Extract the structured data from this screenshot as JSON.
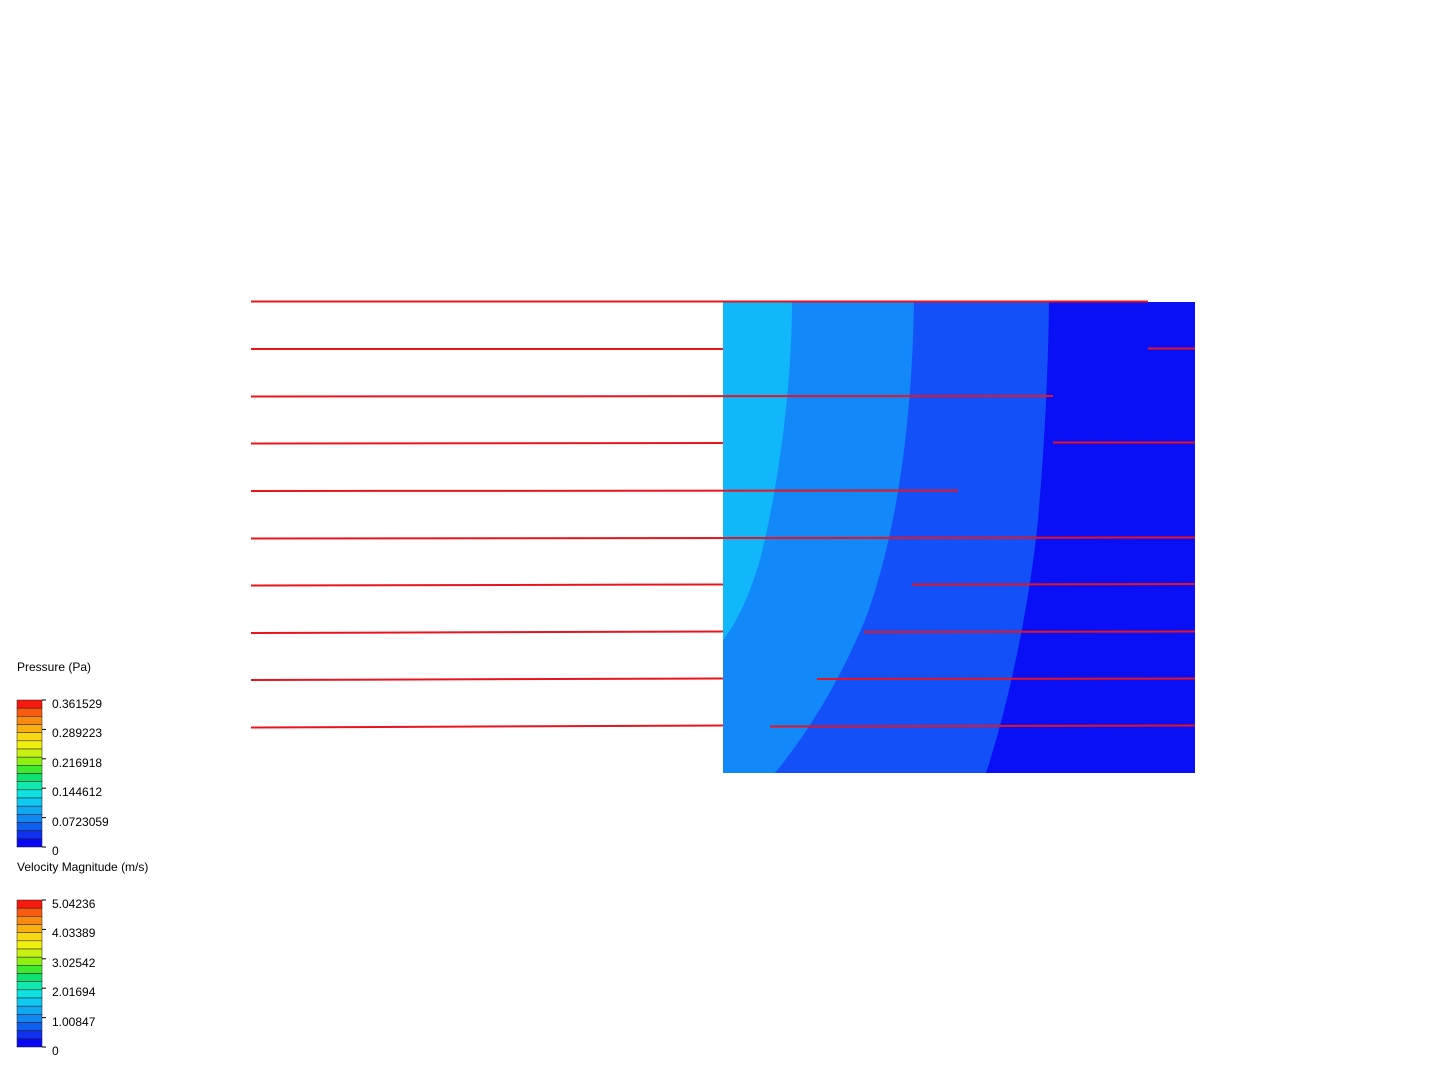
{
  "chart_data": [
    {
      "type": "heatmap",
      "title": "",
      "field": "Pressure (Pa)",
      "description_note": "",
      "color_scale": "rainbow (blue to red), banded",
      "domain_x": [
        0,
        1
      ],
      "domain_y": [
        0,
        1
      ],
      "bands": [
        {
          "color": "#10b8fa",
          "value_range": [
            0.0723059,
            0.0904
          ]
        },
        {
          "color": "#1388f8",
          "value_range": [
            0.0482,
            0.0723059
          ]
        },
        {
          "color": "#1450f8",
          "value_range": [
            0.0241,
            0.0482
          ]
        },
        {
          "color": "#0a10f5",
          "value_range": [
            0,
            0.0241
          ]
        }
      ]
    },
    {
      "type": "line",
      "field": "Velocity Magnitude (m/s)",
      "series_color": "#e8141e"
    }
  ],
  "legends": {
    "pressure": {
      "title": "Pressure (Pa)",
      "labels": [
        "0.361529",
        "0.289223",
        "0.216918",
        "0.144612",
        "0.0723059",
        "0"
      ],
      "colors": [
        "#f51a10",
        "#f85a10",
        "#f88a10",
        "#f8b010",
        "#f8d810",
        "#f0f010",
        "#c8f010",
        "#90f010",
        "#40e830",
        "#10e070",
        "#10e8b0",
        "#10e0e0",
        "#10c8f0",
        "#10a8f0",
        "#1088f0",
        "#1060f0",
        "#1030f0",
        "#0808f5"
      ]
    },
    "velocity": {
      "title": "Velocity Magnitude (m/s)",
      "labels": [
        "5.04236",
        "4.03389",
        "3.02542",
        "2.01694",
        "1.00847",
        "0"
      ],
      "colors": [
        "#f51a10",
        "#f85a10",
        "#f88a10",
        "#f8b010",
        "#f8d810",
        "#f0f010",
        "#c8f010",
        "#90f010",
        "#40e830",
        "#10e070",
        "#10e8b0",
        "#10e0e0",
        "#10c8f0",
        "#10a8f0",
        "#1088f0",
        "#1060f0",
        "#1030f0",
        "#0808f5"
      ]
    }
  },
  "colors": {
    "streamline": "#e8141e",
    "tick": "#000000",
    "swatch_border": "#1a1a1a"
  }
}
